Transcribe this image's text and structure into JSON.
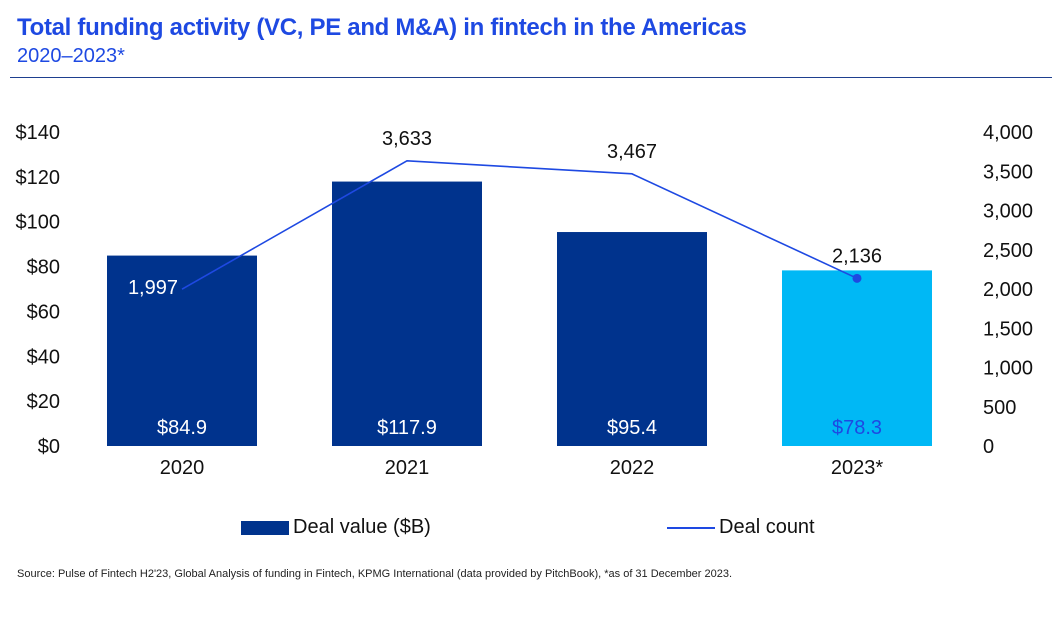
{
  "header": {
    "title": "Total funding activity (VC, PE and M&A) in fintech in the Americas",
    "subtitle": "2020–2023*"
  },
  "colors": {
    "title": "#1e49e2",
    "bar_primary": "#00338d",
    "bar_highlight": "#00b8f5",
    "line": "#1e49e2",
    "bar_label_light": "#ffffff",
    "bar_label_highlight": "#1e49e2"
  },
  "chart_data": {
    "type": "bar",
    "title": "Total funding activity (VC, PE and M&A) in fintech in the Americas",
    "subtitle": "2020–2023*",
    "categories": [
      "2020",
      "2021",
      "2022",
      "2023*"
    ],
    "series": [
      {
        "name": "Deal value ($B)",
        "type": "bar",
        "axis": "left",
        "values": [
          84.9,
          117.9,
          95.4,
          78.3
        ],
        "labels": [
          "$84.9",
          "$117.9",
          "$95.4",
          "$78.3"
        ],
        "highlight_index": 3
      },
      {
        "name": "Deal count",
        "type": "line",
        "axis": "right",
        "values": [
          1997,
          3633,
          3467,
          2136
        ],
        "labels": [
          "1,997",
          "3,633",
          "3,467",
          "2,136"
        ],
        "marker_index": 3
      }
    ],
    "y_left": {
      "range": [
        0,
        140
      ],
      "ticks": [
        0,
        20,
        40,
        60,
        80,
        100,
        120,
        140
      ],
      "tick_labels": [
        "$0",
        "$20",
        "$40",
        "$60",
        "$80",
        "$100",
        "$120",
        "$140"
      ]
    },
    "y_right": {
      "range": [
        0,
        4000
      ],
      "ticks": [
        0,
        500,
        1000,
        1500,
        2000,
        2500,
        3000,
        3500,
        4000
      ],
      "tick_labels": [
        "0",
        "500",
        "1,000",
        "1,500",
        "2,000",
        "2,500",
        "3,000",
        "3,500",
        "4,000"
      ]
    },
    "xlabel": "",
    "ylabel": "",
    "grid": false,
    "legend_position": "bottom"
  },
  "legend": {
    "bar_label": "Deal value ($B)",
    "line_label": "Deal count"
  },
  "footer": {
    "source": "Source: Pulse of Fintech H2'23, Global Analysis of funding in Fintech, KPMG International (data provided by PitchBook), *as of 31 December 2023."
  }
}
